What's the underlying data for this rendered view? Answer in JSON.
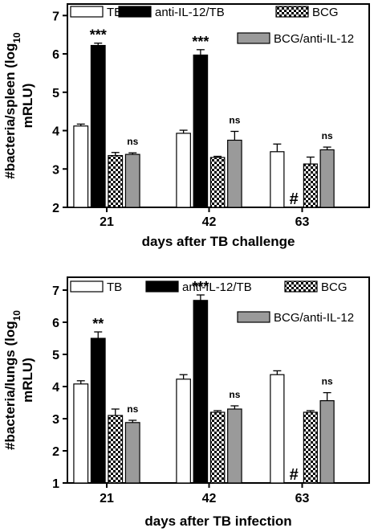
{
  "chart_data": [
    {
      "type": "bar",
      "ylabel_main": "#bacteria/spleen (log",
      "ylabel_sub": "10",
      "ylabel_unit": "mRLU)",
      "xlabel": "days after TB challenge",
      "ylim": [
        2,
        7.3
      ],
      "yticks": [
        2,
        3,
        4,
        5,
        6,
        7
      ],
      "categories": [
        "21",
        "42",
        "63"
      ],
      "series": [
        {
          "name": "TB",
          "style": "white",
          "values": [
            4.12,
            3.93,
            3.45
          ],
          "errors": [
            0.05,
            0.08,
            0.2
          ]
        },
        {
          "name": "anti-IL-12/TB",
          "style": "black",
          "values": [
            6.22,
            5.97,
            null
          ],
          "errors": [
            0.06,
            0.14,
            null
          ]
        },
        {
          "name": "BCG",
          "style": "checker",
          "values": [
            3.35,
            3.3,
            3.13
          ],
          "errors": [
            0.08,
            0.03,
            0.18
          ]
        },
        {
          "name": "BCG/anti-IL-12",
          "style": "gray",
          "values": [
            3.38,
            3.75,
            3.5
          ],
          "errors": [
            0.04,
            0.23,
            0.07
          ]
        }
      ],
      "annotations": [
        {
          "category": 0,
          "series": 1,
          "text": "***"
        },
        {
          "category": 0,
          "series": 3,
          "text": "ns"
        },
        {
          "category": 1,
          "series": 1,
          "text": "***"
        },
        {
          "category": 1,
          "series": 3,
          "text": "ns"
        },
        {
          "category": 2,
          "series": 1,
          "text": "#"
        },
        {
          "category": 2,
          "series": 3,
          "text": "ns"
        }
      ]
    },
    {
      "type": "bar",
      "ylabel_main": "#bacteria/lungs (log",
      "ylabel_sub": "10",
      "ylabel_unit": "mRLU)",
      "xlabel": "days after TB infection",
      "ylim": [
        1,
        7.4
      ],
      "yticks": [
        1,
        2,
        3,
        4,
        5,
        6,
        7
      ],
      "categories": [
        "21",
        "42",
        "63"
      ],
      "series": [
        {
          "name": "TB",
          "style": "white",
          "values": [
            4.08,
            4.23,
            4.37
          ],
          "errors": [
            0.1,
            0.14,
            0.12
          ]
        },
        {
          "name": "anti-IL-12/TB",
          "style": "black",
          "values": [
            5.5,
            6.68,
            null
          ],
          "errors": [
            0.2,
            0.17,
            null
          ]
        },
        {
          "name": "BCG",
          "style": "checker",
          "values": [
            3.1,
            3.2,
            3.2
          ],
          "errors": [
            0.2,
            0.05,
            0.05
          ]
        },
        {
          "name": "BCG/anti-IL-12",
          "style": "gray",
          "values": [
            2.88,
            3.3,
            3.56
          ],
          "errors": [
            0.07,
            0.1,
            0.25
          ]
        }
      ],
      "annotations": [
        {
          "category": 0,
          "series": 1,
          "text": "**"
        },
        {
          "category": 0,
          "series": 3,
          "text": "ns"
        },
        {
          "category": 1,
          "series": 1,
          "text": "***"
        },
        {
          "category": 1,
          "series": 3,
          "text": "ns"
        },
        {
          "category": 2,
          "series": 1,
          "text": "#"
        },
        {
          "category": 2,
          "series": 3,
          "text": "ns"
        }
      ]
    }
  ]
}
